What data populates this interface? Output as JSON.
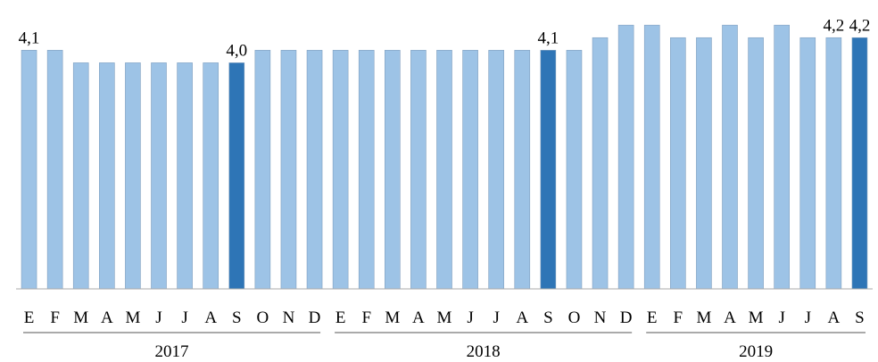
{
  "chart_data": {
    "type": "bar",
    "ylim": [
      2.2,
      4.5
    ],
    "colors": {
      "normal": "#9dc3e6",
      "highlight": "#2e75b6"
    },
    "groups": [
      {
        "label": "2017",
        "categories": [
          "E",
          "F",
          "M",
          "A",
          "M",
          "J",
          "J",
          "A",
          "S",
          "O",
          "N",
          "D"
        ],
        "values": [
          4.1,
          4.1,
          4.0,
          4.0,
          4.0,
          4.0,
          4.0,
          4.0,
          4.0,
          4.1,
          4.1,
          4.1
        ],
        "value_labels": [
          "4,1",
          null,
          null,
          null,
          null,
          null,
          null,
          null,
          "4,0",
          null,
          null,
          null
        ],
        "highlight": [
          false,
          false,
          false,
          false,
          false,
          false,
          false,
          false,
          true,
          false,
          false,
          false
        ]
      },
      {
        "label": "2018",
        "categories": [
          "E",
          "F",
          "M",
          "A",
          "M",
          "J",
          "J",
          "A",
          "S",
          "O",
          "N",
          "D"
        ],
        "values": [
          4.1,
          4.1,
          4.1,
          4.1,
          4.1,
          4.1,
          4.1,
          4.1,
          4.1,
          4.1,
          4.2,
          4.3
        ],
        "value_labels": [
          null,
          null,
          null,
          null,
          null,
          null,
          null,
          null,
          "4,1",
          null,
          null,
          null
        ],
        "highlight": [
          false,
          false,
          false,
          false,
          false,
          false,
          false,
          false,
          true,
          false,
          false,
          false
        ]
      },
      {
        "label": "2019",
        "categories": [
          "E",
          "F",
          "M",
          "A",
          "M",
          "J",
          "J",
          "A",
          "S"
        ],
        "values": [
          4.3,
          4.2,
          4.2,
          4.3,
          4.2,
          4.3,
          4.2,
          4.2,
          4.2
        ],
        "value_labels": [
          null,
          null,
          null,
          null,
          null,
          null,
          null,
          "4,2",
          "4,2"
        ],
        "highlight": [
          false,
          false,
          false,
          false,
          false,
          false,
          false,
          false,
          true
        ]
      }
    ]
  }
}
